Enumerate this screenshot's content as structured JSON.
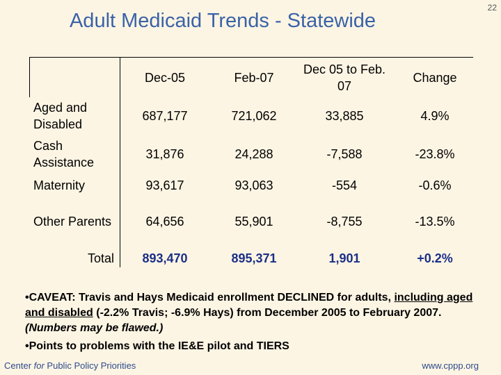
{
  "page_number": "22",
  "title": "Adult Medicaid Trends - Statewide",
  "table": {
    "header": [
      "Dec-05",
      "Feb-07",
      "Dec 05 to Feb. 07",
      "Change"
    ],
    "rows": [
      [
        "Aged and Disabled",
        "687,177",
        "721,062",
        "33,885",
        "4.9%"
      ],
      [
        "Cash Assistance",
        "31,876",
        "24,288",
        "-7,588",
        "-23.8%"
      ],
      [
        "Maternity",
        "93,617",
        "93,063",
        "-554",
        "-0.6%"
      ],
      [
        "Other Parents",
        "64,656",
        "55,901",
        "-8,755",
        "-13.5%"
      ],
      [
        "Total",
        "893,470",
        "895,371",
        "1,901",
        "+0.2%"
      ]
    ]
  },
  "bullets": [
    [
      "•CAVEAT:  Travis and Hays Medicaid enrollment DECLINED for adults, ",
      "including aged and disabled",
      " (-2.2% Travis; -6.9% Hays) from December 2005 to February 2007.  ",
      "(Numbers may be flawed.)"
    ],
    [
      "•Points to problems with the IE&E pilot and TIERS"
    ]
  ],
  "footer": {
    "left": [
      "Center ",
      "for",
      " Public Policy Priorities"
    ],
    "right": "www.cppp.org"
  }
}
